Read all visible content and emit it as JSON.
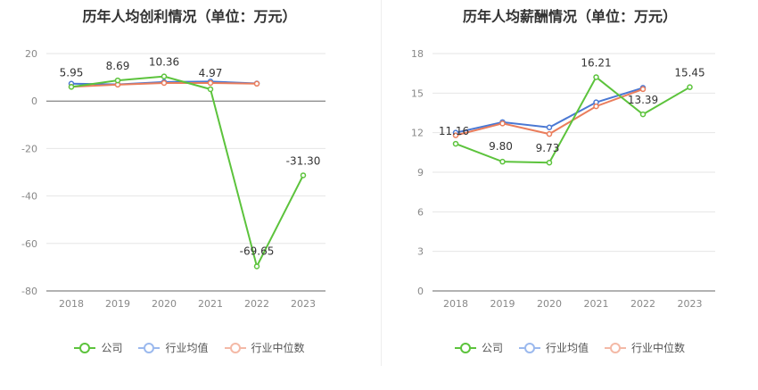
{
  "charts": [
    {
      "title": "历年人均创利情况（单位：万元）",
      "chart_data": {
        "type": "line",
        "categories": [
          "2018",
          "2019",
          "2020",
          "2021",
          "2022",
          "2023"
        ],
        "ylim": [
          -80,
          20
        ],
        "yticks": [
          "20",
          "0",
          "-20",
          "-40",
          "-60",
          "-80"
        ],
        "ytick_values": [
          20,
          0,
          -20,
          -40,
          -60,
          -80
        ],
        "series": [
          {
            "name": "公司",
            "color": "#5cc33c",
            "values": [
              5.95,
              8.69,
              10.36,
              4.97,
              -69.65,
              -31.3
            ],
            "labels": [
              "5.95",
              "8.69",
              "10.36",
              "4.97",
              "-69.65",
              "-31.30"
            ]
          },
          {
            "name": "行业均值",
            "color": "#4a78d3",
            "values": [
              7.3,
              7.0,
              8.0,
              8.2,
              7.4,
              null
            ]
          },
          {
            "name": "行业中位数",
            "color": "#ea7d5c",
            "values": [
              6.0,
              6.9,
              7.6,
              7.6,
              7.3,
              null
            ]
          }
        ]
      }
    },
    {
      "title": "历年人均薪酬情况（单位：万元）",
      "chart_data": {
        "type": "line",
        "categories": [
          "2018",
          "2019",
          "2020",
          "2021",
          "2022",
          "2023"
        ],
        "ylim": [
          0,
          18
        ],
        "yticks": [
          "18",
          "15",
          "12",
          "9",
          "6",
          "3",
          "0"
        ],
        "ytick_values": [
          18,
          15,
          12,
          9,
          6,
          3,
          0
        ],
        "series": [
          {
            "name": "公司",
            "color": "#5cc33c",
            "values": [
              11.16,
              9.8,
              9.73,
              16.21,
              13.39,
              15.45
            ],
            "labels": [
              "11.16",
              "9.80",
              "9.73",
              "16.21",
              "13.39",
              "15.45"
            ]
          },
          {
            "name": "行业均值",
            "color": "#4a78d3",
            "values": [
              12.0,
              12.8,
              12.4,
              14.3,
              15.4,
              null
            ]
          },
          {
            "name": "行业中位数",
            "color": "#ea7d5c",
            "values": [
              11.8,
              12.7,
              11.9,
              14.0,
              15.3,
              null
            ]
          }
        ]
      }
    }
  ],
  "legend": [
    {
      "label": "公司",
      "color": "#5cc33c"
    },
    {
      "label": "行业均值",
      "color": "#9bb9ee"
    },
    {
      "label": "行业中位数",
      "color": "#f4b9a6"
    }
  ]
}
